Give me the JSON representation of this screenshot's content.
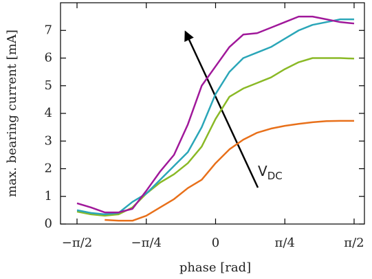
{
  "chart_data": {
    "type": "line",
    "x_label": "phase [rad]",
    "y_label": "max. bearing current [mA]",
    "annotation": {
      "text": "V",
      "subscript": "DC"
    },
    "xlim": [
      -1.758,
      1.688
    ],
    "ylim": [
      0,
      8
    ],
    "xticks": [
      {
        "value": -1.5708,
        "label": "−π/2"
      },
      {
        "value": -0.7854,
        "label": "−π/4"
      },
      0,
      {
        "value": 0.7854,
        "label": "π/4"
      },
      {
        "value": 1.5708,
        "label": "π/2"
      }
    ],
    "yticks": [
      0,
      1,
      2,
      3,
      4,
      5,
      6,
      7
    ],
    "x": [
      -1.5708,
      -1.4137,
      -1.2566,
      -1.0996,
      -0.9425,
      -0.7854,
      -0.6283,
      -0.4712,
      -0.3142,
      -0.1571,
      0,
      0.1571,
      0.3142,
      0.4712,
      0.6283,
      0.7854,
      0.9425,
      1.0996,
      1.2566,
      1.4137,
      1.5708
    ],
    "series": [
      {
        "color": "#e8701a",
        "values": [
          null,
          null,
          0.15,
          0.12,
          0.12,
          0.3,
          0.6,
          0.9,
          1.3,
          1.6,
          2.2,
          2.7,
          3.05,
          3.3,
          3.45,
          3.55,
          3.62,
          3.68,
          3.72,
          3.73,
          3.73
        ]
      },
      {
        "color": "#8ab926",
        "values": [
          0.45,
          0.35,
          0.3,
          0.35,
          0.6,
          1.1,
          1.5,
          1.8,
          2.2,
          2.8,
          3.8,
          4.6,
          4.9,
          5.1,
          5.3,
          5.6,
          5.85,
          6.0,
          6.0,
          6.0,
          5.98
        ]
      },
      {
        "color": "#2aa6b8",
        "values": [
          0.5,
          0.4,
          0.35,
          0.4,
          0.8,
          1.1,
          1.6,
          2.1,
          2.6,
          3.5,
          4.7,
          5.5,
          6.0,
          6.2,
          6.4,
          6.7,
          7.0,
          7.2,
          7.3,
          7.4,
          7.4
        ]
      },
      {
        "color": "#a0189a",
        "values": [
          0.75,
          0.6,
          0.42,
          0.42,
          0.55,
          1.2,
          1.9,
          2.5,
          3.6,
          5.0,
          5.7,
          6.4,
          6.85,
          6.9,
          7.1,
          7.3,
          7.5,
          7.5,
          7.4,
          7.3,
          7.25
        ]
      }
    ]
  }
}
